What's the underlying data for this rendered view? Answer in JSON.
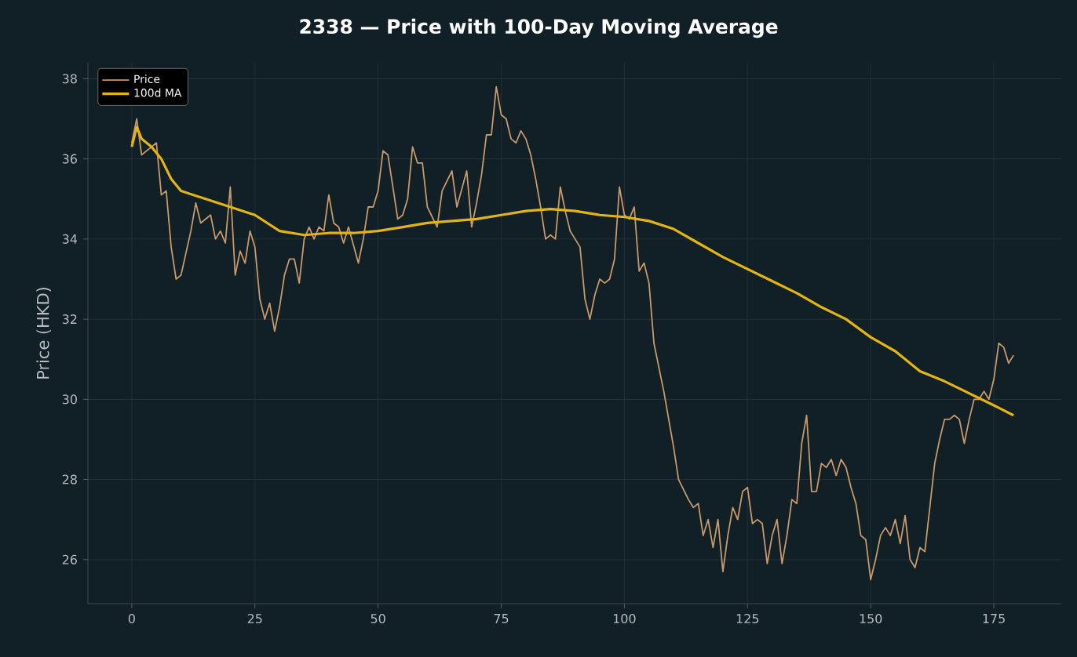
{
  "chart_data": {
    "type": "line",
    "title": "2338 — Price with 100-Day Moving Average",
    "ylabel": "Price (HKD)",
    "xlim": [
      -8.9,
      188.7
    ],
    "ylim": [
      24.9,
      38.4
    ],
    "xticks": [
      0,
      25,
      50,
      75,
      100,
      125,
      150,
      175
    ],
    "yticks": [
      26,
      28,
      30,
      32,
      34,
      36,
      38
    ],
    "grid": true,
    "legend": "top left",
    "marker": "none",
    "line_style": "solid",
    "series": [
      {
        "name": "Price",
        "color": "#c8996a",
        "x": [
          0,
          1,
          2,
          4,
          5,
          6,
          7,
          8,
          9,
          10,
          12,
          13,
          14,
          16,
          17,
          18,
          19,
          20,
          21,
          22,
          23,
          24,
          25,
          26,
          27,
          28,
          29,
          30,
          31,
          32,
          33,
          34,
          35,
          36,
          37,
          38,
          39,
          40,
          41,
          42,
          43,
          44,
          46,
          47,
          48,
          49,
          50,
          51,
          52,
          53,
          54,
          55,
          56,
          57,
          58,
          59,
          60,
          62,
          63,
          65,
          66,
          68,
          69,
          70,
          71,
          72,
          73,
          74,
          75,
          76,
          77,
          78,
          79,
          80,
          81,
          82,
          83,
          84,
          85,
          86,
          87,
          88,
          89,
          90,
          91,
          92,
          93,
          94,
          95,
          96,
          97,
          98,
          99,
          100,
          101,
          102,
          103,
          104,
          105,
          106,
          108,
          110,
          111,
          113,
          114,
          115,
          116,
          117,
          118,
          119,
          120,
          121,
          122,
          123,
          124,
          125,
          126,
          127,
          128,
          129,
          130,
          131,
          132,
          133,
          134,
          135,
          136,
          137,
          138,
          139,
          140,
          141,
          142,
          143,
          144,
          145,
          146,
          147,
          148,
          149,
          150,
          151,
          152,
          153,
          154,
          155,
          156,
          157,
          158,
          159,
          160,
          161,
          162,
          163,
          164,
          165,
          166,
          167,
          168,
          169,
          170,
          171,
          172,
          173,
          174,
          175,
          176,
          177,
          178,
          179
        ],
        "values": [
          36.4,
          37.0,
          36.1,
          36.3,
          36.4,
          35.1,
          35.2,
          33.8,
          33.0,
          33.1,
          34.2,
          34.9,
          34.4,
          34.6,
          34.0,
          34.2,
          33.9,
          35.3,
          33.1,
          33.7,
          33.4,
          34.2,
          33.8,
          32.5,
          32.0,
          32.4,
          31.7,
          32.3,
          33.1,
          33.5,
          33.5,
          32.9,
          34.0,
          34.3,
          34.0,
          34.3,
          34.2,
          35.1,
          34.4,
          34.3,
          33.9,
          34.3,
          33.4,
          34.0,
          34.8,
          34.8,
          35.2,
          36.2,
          36.1,
          35.3,
          34.5,
          34.6,
          35.0,
          36.3,
          35.9,
          35.9,
          34.8,
          34.3,
          35.2,
          35.7,
          34.8,
          35.7,
          34.3,
          34.9,
          35.6,
          36.6,
          36.6,
          37.8,
          37.1,
          37.0,
          36.5,
          36.4,
          36.7,
          36.5,
          36.1,
          35.5,
          34.8,
          34.0,
          34.1,
          34.0,
          35.3,
          34.7,
          34.2,
          34.0,
          33.8,
          32.5,
          32.0,
          32.6,
          33.0,
          32.9,
          33.0,
          33.5,
          35.3,
          34.6,
          34.5,
          34.8,
          33.2,
          33.4,
          32.9,
          31.4,
          30.2,
          28.8,
          28.0,
          27.5,
          27.3,
          27.4,
          26.6,
          27.0,
          26.3,
          27.0,
          25.7,
          26.6,
          27.3,
          27.0,
          27.7,
          27.8,
          26.9,
          27.0,
          26.9,
          25.9,
          26.6,
          27.0,
          25.9,
          26.6,
          27.5,
          27.4,
          28.9,
          29.6,
          27.7,
          27.7,
          28.4,
          28.3,
          28.5,
          28.1,
          28.5,
          28.3,
          27.8,
          27.4,
          26.6,
          26.5,
          25.5,
          26.0,
          26.6,
          26.8,
          26.6,
          27.0,
          26.4,
          27.1,
          26.0,
          25.8,
          26.3,
          26.2,
          27.3,
          28.4,
          29.0,
          29.5,
          29.5,
          29.6,
          29.5,
          28.9,
          29.5,
          30.0,
          30.0,
          30.2,
          30.0,
          30.5,
          31.4,
          31.3,
          30.9,
          31.1
        ]
      },
      {
        "name": "100d MA",
        "color": "#e3b512",
        "x": [
          0,
          1,
          2,
          4,
          6,
          8,
          10,
          15,
          20,
          25,
          30,
          35,
          40,
          45,
          50,
          55,
          60,
          65,
          70,
          75,
          80,
          85,
          90,
          95,
          100,
          105,
          110,
          115,
          120,
          125,
          130,
          135,
          140,
          145,
          150,
          155,
          160,
          165,
          170,
          175,
          179
        ],
        "values": [
          36.3,
          36.8,
          36.5,
          36.3,
          36.0,
          35.5,
          35.2,
          35.0,
          34.8,
          34.6,
          34.2,
          34.1,
          34.15,
          34.15,
          34.2,
          34.3,
          34.4,
          34.45,
          34.5,
          34.6,
          34.7,
          34.75,
          34.7,
          34.6,
          34.55,
          34.45,
          34.25,
          33.9,
          33.55,
          33.25,
          32.95,
          32.65,
          32.3,
          32.0,
          31.55,
          31.2,
          30.7,
          30.45,
          30.15,
          29.85,
          29.6
        ]
      }
    ]
  }
}
